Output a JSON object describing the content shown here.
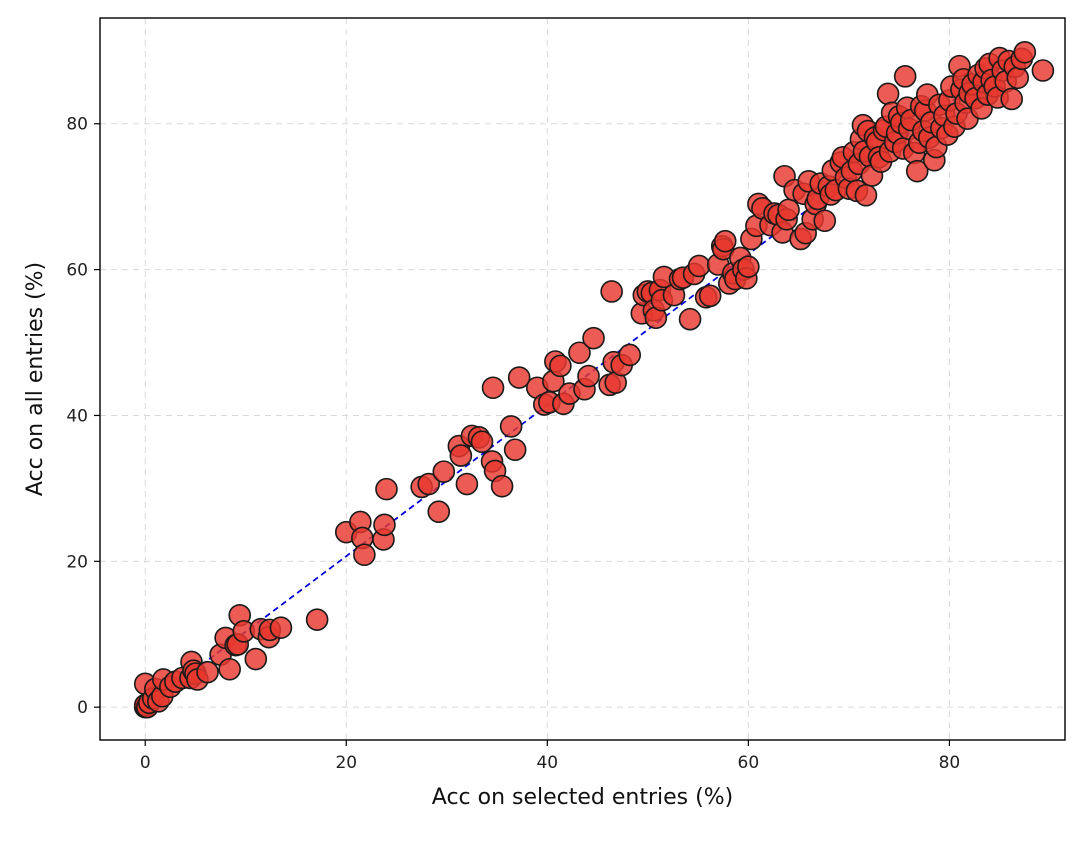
{
  "chart_data": {
    "type": "scatter",
    "xlabel": "Acc on selected entries (%)",
    "ylabel": "Acc on all entries (%)",
    "xlim": [
      -4.5,
      91.5
    ],
    "ylim": [
      -4.5,
      94.5
    ],
    "xticks": [
      0,
      20,
      40,
      60,
      80
    ],
    "yticks": [
      0,
      20,
      40,
      60,
      80
    ],
    "grid": true,
    "point_color": "#e8382e",
    "edge_color": "#1a1a1a",
    "reference_line": {
      "style": "dashed",
      "color": "#0000dd",
      "x": [
        0,
        85
      ],
      "y": [
        0,
        88
      ]
    },
    "points": [
      [
        0,
        0
      ],
      [
        0,
        0.3
      ],
      [
        0.2,
        0
      ],
      [
        0,
        3.2
      ],
      [
        0.4,
        0.6
      ],
      [
        0.8,
        1.2
      ],
      [
        1,
        2.5
      ],
      [
        1.3,
        0.8
      ],
      [
        1.7,
        1.5
      ],
      [
        1.8,
        3.8
      ],
      [
        2.5,
        2.8
      ],
      [
        3,
        3.5
      ],
      [
        3.7,
        4
      ],
      [
        4.5,
        4
      ],
      [
        4.6,
        6.2
      ],
      [
        4.8,
        5
      ],
      [
        5,
        4.6
      ],
      [
        5.2,
        3.8
      ],
      [
        6.2,
        4.8
      ],
      [
        7.5,
        7.2
      ],
      [
        8,
        9.5
      ],
      [
        8.4,
        5.2
      ],
      [
        9,
        8.5
      ],
      [
        9.2,
        8.6
      ],
      [
        9.4,
        12.6
      ],
      [
        9.8,
        10.4
      ],
      [
        11,
        6.6
      ],
      [
        11.5,
        10.7
      ],
      [
        12.3,
        9.6
      ],
      [
        12.4,
        10.6
      ],
      [
        13.5,
        10.9
      ],
      [
        17.1,
        12
      ],
      [
        20,
        24
      ],
      [
        21.4,
        25.4
      ],
      [
        21.6,
        23.2
      ],
      [
        21.8,
        20.9
      ],
      [
        23.7,
        23
      ],
      [
        23.8,
        25
      ],
      [
        24,
        29.9
      ],
      [
        27.5,
        30.2
      ],
      [
        28.2,
        30.6
      ],
      [
        29.2,
        26.8
      ],
      [
        29.7,
        32.3
      ],
      [
        31.2,
        35.8
      ],
      [
        31.4,
        34.5
      ],
      [
        32,
        30.6
      ],
      [
        32.5,
        37.2
      ],
      [
        33.2,
        37
      ],
      [
        33.5,
        36.4
      ],
      [
        34.5,
        33.7
      ],
      [
        34.6,
        43.8
      ],
      [
        34.8,
        32.4
      ],
      [
        35.5,
        30.3
      ],
      [
        36.4,
        38.5
      ],
      [
        36.8,
        35.3
      ],
      [
        37.2,
        45.2
      ],
      [
        39,
        43.8
      ],
      [
        39.7,
        41.5
      ],
      [
        40.2,
        41.8
      ],
      [
        40.6,
        44.7
      ],
      [
        40.8,
        47.4
      ],
      [
        41.3,
        46.8
      ],
      [
        41.6,
        41.6
      ],
      [
        42.2,
        43
      ],
      [
        43.2,
        48.6
      ],
      [
        43.7,
        43.6
      ],
      [
        44.1,
        45.4
      ],
      [
        44.6,
        50.6
      ],
      [
        46.2,
        44.2
      ],
      [
        46.4,
        57
      ],
      [
        46.6,
        47.3
      ],
      [
        46.8,
        44.5
      ],
      [
        47.4,
        46.9
      ],
      [
        48.2,
        48.3
      ],
      [
        49.4,
        54
      ],
      [
        49.6,
        56.5
      ],
      [
        50,
        57
      ],
      [
        50.4,
        56.8
      ],
      [
        50.6,
        54.4
      ],
      [
        50.8,
        53.4
      ],
      [
        51.2,
        57.2
      ],
      [
        51.4,
        55.8
      ],
      [
        51.6,
        59
      ],
      [
        52.6,
        56.5
      ],
      [
        53.2,
        58.7
      ],
      [
        53.5,
        58.9
      ],
      [
        54.2,
        53.2
      ],
      [
        54.6,
        59.4
      ],
      [
        55.1,
        60.5
      ],
      [
        55.8,
        56.2
      ],
      [
        56.2,
        56.4
      ],
      [
        57,
        60.7
      ],
      [
        57.4,
        63.2
      ],
      [
        57.5,
        62.8
      ],
      [
        57.7,
        63.9
      ],
      [
        58.1,
        58.1
      ],
      [
        58.5,
        59.5
      ],
      [
        58.7,
        58.7
      ],
      [
        59.2,
        61.6
      ],
      [
        59.5,
        60
      ],
      [
        59.8,
        58.8
      ],
      [
        60,
        60.4
      ],
      [
        60.3,
        64.2
      ],
      [
        60.8,
        66
      ],
      [
        61,
        69
      ],
      [
        61.4,
        68.4
      ],
      [
        62.2,
        66.1
      ],
      [
        62.6,
        67.7
      ],
      [
        63,
        67.5
      ],
      [
        63.4,
        65.1
      ],
      [
        63.6,
        72.8
      ],
      [
        63.8,
        66.9
      ],
      [
        64,
        68.2
      ],
      [
        64.6,
        70.9
      ],
      [
        65.2,
        64.2
      ],
      [
        65.5,
        70.4
      ],
      [
        65.7,
        65
      ],
      [
        66,
        72.1
      ],
      [
        66.4,
        66.9
      ],
      [
        66.7,
        69
      ],
      [
        66.9,
        69.7
      ],
      [
        67.2,
        71.8
      ],
      [
        67.6,
        66.7
      ],
      [
        68,
        71.4
      ],
      [
        68.2,
        70.3
      ],
      [
        68.4,
        73.6
      ],
      [
        68.7,
        70.9
      ],
      [
        69.2,
        74.7
      ],
      [
        69.4,
        75.4
      ],
      [
        69.7,
        72.6
      ],
      [
        70,
        71.1
      ],
      [
        70.3,
        73.5
      ],
      [
        70.5,
        76.1
      ],
      [
        70.8,
        70.8
      ],
      [
        71,
        74.5
      ],
      [
        71.2,
        77.9
      ],
      [
        71.4,
        79.8
      ],
      [
        71.5,
        76.2
      ],
      [
        71.7,
        70.2
      ],
      [
        71.9,
        79
      ],
      [
        72.1,
        75.5
      ],
      [
        72.3,
        72.9
      ],
      [
        72.6,
        78.1
      ],
      [
        72.8,
        77.5
      ],
      [
        73,
        75.4
      ],
      [
        73.2,
        74.8
      ],
      [
        73.5,
        79.1
      ],
      [
        73.7,
        79.6
      ],
      [
        73.9,
        84.1
      ],
      [
        74.1,
        76.2
      ],
      [
        74.3,
        81.5
      ],
      [
        74.6,
        77.5
      ],
      [
        74.8,
        78.7
      ],
      [
        75,
        81
      ],
      [
        75.2,
        80.1
      ],
      [
        75.4,
        76.6
      ],
      [
        75.6,
        86.5
      ],
      [
        75.8,
        82.2
      ],
      [
        76,
        79.3
      ],
      [
        76.2,
        80.5
      ],
      [
        76.5,
        76
      ],
      [
        76.8,
        73.5
      ],
      [
        77,
        77.4
      ],
      [
        77.2,
        82.4
      ],
      [
        77.4,
        79
      ],
      [
        77.6,
        81.8
      ],
      [
        77.8,
        84
      ],
      [
        78,
        78.1
      ],
      [
        78.2,
        80.2
      ],
      [
        78.5,
        75
      ],
      [
        78.7,
        76.8
      ],
      [
        79,
        82.6
      ],
      [
        79.2,
        79.4
      ],
      [
        79.5,
        81.1
      ],
      [
        79.8,
        78.5
      ],
      [
        80,
        83.2
      ],
      [
        80.2,
        85.1
      ],
      [
        80.5,
        79.6
      ],
      [
        80.7,
        81.4
      ],
      [
        81,
        87.9
      ],
      [
        81.2,
        84.7
      ],
      [
        81.4,
        86.1
      ],
      [
        81.6,
        82.9
      ],
      [
        81.8,
        80.7
      ],
      [
        82,
        84.2
      ],
      [
        82.3,
        85.4
      ],
      [
        82.6,
        83.5
      ],
      [
        82.9,
        86.7
      ],
      [
        83.2,
        82.1
      ],
      [
        83.4,
        85.7
      ],
      [
        83.6,
        87.6
      ],
      [
        83.8,
        84
      ],
      [
        84,
        88.2
      ],
      [
        84.2,
        86
      ],
      [
        84.5,
        85.1
      ],
      [
        84.8,
        83.6
      ],
      [
        85,
        89
      ],
      [
        85.3,
        87.3
      ],
      [
        85.6,
        85.8
      ],
      [
        85.9,
        88.6
      ],
      [
        86.2,
        83.4
      ],
      [
        86.5,
        87.8
      ],
      [
        86.8,
        86.3
      ],
      [
        87.2,
        88.9
      ],
      [
        87.5,
        89.8
      ],
      [
        89.3,
        87.3
      ]
    ]
  }
}
